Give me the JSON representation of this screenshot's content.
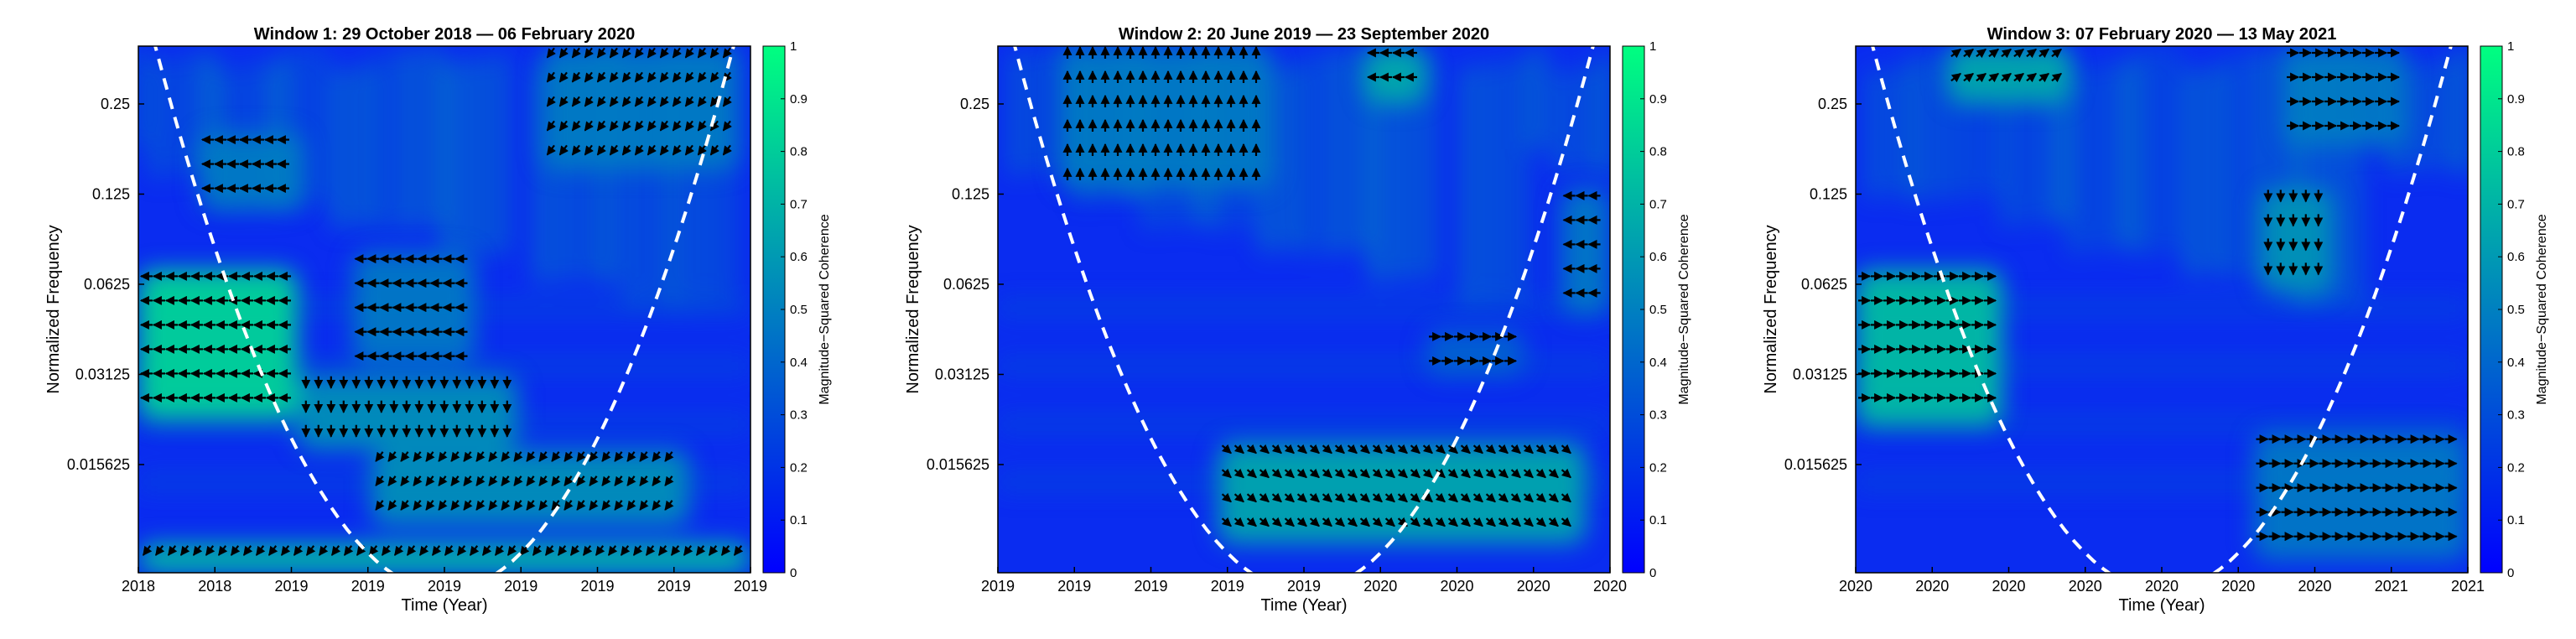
{
  "chart_data": [
    {
      "type": "heatmap",
      "title": "Window 1: 29 October 2018 — 06 February 2020",
      "xlabel": "Time (Year)",
      "ylabel": "Normalized Frequency",
      "x_tick_labels": [
        "2018",
        "2018",
        "2019",
        "2019",
        "2019",
        "2019",
        "2019",
        "2019",
        "2019"
      ],
      "y_tick_labels": [
        "0.25",
        "0.125",
        "0.0625",
        "0.03125",
        "0.015625"
      ],
      "y_ticks": [
        0.25,
        0.125,
        0.0625,
        0.03125,
        0.015625
      ],
      "ylim": [
        0.0068,
        0.39
      ],
      "y_scale": "log2",
      "colorbar": {
        "label": "Magnitude−Squared Coherence",
        "range": [
          0,
          1
        ],
        "ticks": [
          "0",
          "0.1",
          "0.2",
          "0.3",
          "0.4",
          "0.5",
          "0.6",
          "0.7",
          "0.8",
          "0.9",
          "1"
        ]
      },
      "cone_of_influence": true,
      "high_coherence_regions": [
        {
          "t": [
            0.0,
            0.26
          ],
          "f": [
            0.022,
            0.07
          ],
          "level": 0.9,
          "arrows": "left"
        },
        {
          "t": [
            0.26,
            0.62
          ],
          "f": [
            0.0175,
            0.031
          ],
          "level": 0.6,
          "arrows": "down"
        },
        {
          "t": [
            0.35,
            0.55
          ],
          "f": [
            0.034,
            0.08
          ],
          "level": 0.5,
          "arrows": "left"
        },
        {
          "t": [
            0.38,
            0.9
          ],
          "f": [
            0.0098,
            0.0175
          ],
          "level": 0.6,
          "arrows": "down-left"
        },
        {
          "t": [
            0.0,
            1.0
          ],
          "f": [
            0.0068,
            0.0085
          ],
          "level": 0.8,
          "arrows": "down-left"
        },
        {
          "t": [
            0.1,
            0.27
          ],
          "f": [
            0.11,
            0.2
          ],
          "level": 0.5,
          "arrows": "left"
        },
        {
          "t": [
            0.66,
            0.98
          ],
          "f": [
            0.15,
            0.39
          ],
          "level": 0.5,
          "arrows": "down-left"
        }
      ]
    },
    {
      "type": "heatmap",
      "title": "Window 2: 20 June 2019 — 23 September 2020",
      "xlabel": "Time (Year)",
      "ylabel": "Normalized Frequency",
      "x_tick_labels": [
        "2019",
        "2019",
        "2019",
        "2019",
        "2019",
        "2020",
        "2020",
        "2020",
        "2020"
      ],
      "y_tick_labels": [
        "0.25",
        "0.125",
        "0.0625",
        "0.03125",
        "0.015625"
      ],
      "y_ticks": [
        0.25,
        0.125,
        0.0625,
        0.03125,
        0.015625
      ],
      "ylim": [
        0.0068,
        0.39
      ],
      "y_scale": "log2",
      "colorbar": {
        "label": "Magnitude−Squared Coherence",
        "range": [
          0,
          1
        ],
        "ticks": [
          "0",
          "0.1",
          "0.2",
          "0.3",
          "0.4",
          "0.5",
          "0.6",
          "0.7",
          "0.8",
          "0.9",
          "1"
        ]
      },
      "cone_of_influence": true,
      "high_coherence_regions": [
        {
          "t": [
            0.36,
            0.96
          ],
          "f": [
            0.0085,
            0.0185
          ],
          "level": 0.7,
          "arrows": "down-right"
        },
        {
          "t": [
            0.7,
            0.86
          ],
          "f": [
            0.031,
            0.044
          ],
          "level": 0.4,
          "arrows": "right"
        },
        {
          "t": [
            0.92,
            1.0
          ],
          "f": [
            0.05,
            0.13
          ],
          "level": 0.5,
          "arrows": "left"
        },
        {
          "t": [
            0.1,
            0.45
          ],
          "f": [
            0.13,
            0.39
          ],
          "level": 0.5,
          "arrows": "up"
        },
        {
          "t": [
            0.6,
            0.7
          ],
          "f": [
            0.25,
            0.39
          ],
          "level": 0.7,
          "arrows": "left"
        }
      ]
    },
    {
      "type": "heatmap",
      "title": "Window 3: 07 February 2020 — 13 May 2021",
      "xlabel": "Time (Year)",
      "ylabel": "Normalized Frequency",
      "x_tick_labels": [
        "2020",
        "2020",
        "2020",
        "2020",
        "2020",
        "2020",
        "2020",
        "2021",
        "2021"
      ],
      "y_tick_labels": [
        "0.25",
        "0.125",
        "0.0625",
        "0.03125",
        "0.015625"
      ],
      "y_ticks": [
        0.25,
        0.125,
        0.0625,
        0.03125,
        0.015625
      ],
      "ylim": [
        0.0068,
        0.39
      ],
      "y_scale": "log2",
      "colorbar": {
        "label": "Magnitude−Squared Coherence",
        "range": [
          0,
          1
        ],
        "ticks": [
          "0",
          "0.1",
          "0.2",
          "0.3",
          "0.4",
          "0.5",
          "0.6",
          "0.7",
          "0.8",
          "0.9",
          "1"
        ]
      },
      "cone_of_influence": true,
      "high_coherence_regions": [
        {
          "t": [
            0.0,
            0.24
          ],
          "f": [
            0.021,
            0.07
          ],
          "level": 0.8,
          "arrows": "right"
        },
        {
          "t": [
            0.66,
            0.78
          ],
          "f": [
            0.058,
            0.13
          ],
          "level": 0.6,
          "arrows": "down"
        },
        {
          "t": [
            0.65,
            1.0
          ],
          "f": [
            0.0075,
            0.02
          ],
          "level": 0.5,
          "arrows": "right"
        },
        {
          "t": [
            0.15,
            0.35
          ],
          "f": [
            0.25,
            0.39
          ],
          "level": 0.7,
          "arrows": "up-right"
        },
        {
          "t": [
            0.7,
            0.9
          ],
          "f": [
            0.18,
            0.39
          ],
          "level": 0.5,
          "arrows": "right"
        }
      ]
    }
  ]
}
